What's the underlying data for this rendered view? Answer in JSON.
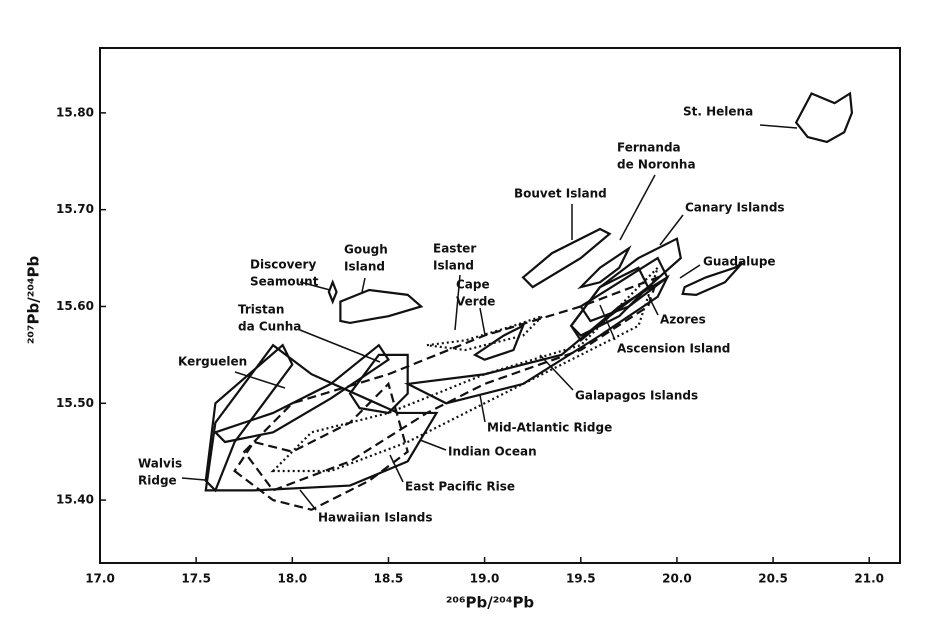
{
  "chart_data": {
    "type": "field",
    "xlabel": "²⁰⁶Pb/²⁰⁴Pb",
    "ylabel": "²⁰⁷Pb/²⁰⁴Pb",
    "xlim": [
      17.0,
      21.16
    ],
    "ylim": [
      15.335,
      15.867
    ],
    "xticks": [
      {
        "value": 17,
        "label": "17.0"
      },
      17.5,
      {
        "value": 18,
        "label": "18.0"
      },
      18.5,
      {
        "value": 19,
        "label": "19.0"
      },
      19.5,
      {
        "value": 20,
        "label": "20.0"
      },
      20.5,
      {
        "value": 21,
        "label": "21.0"
      }
    ],
    "yticks": [
      {
        "value": 15.4,
        "label": "15.40"
      },
      {
        "value": 15.5,
        "label": "15.50"
      },
      {
        "value": 15.6,
        "label": "15.60"
      },
      {
        "value": 15.7,
        "label": "15.70"
      },
      {
        "value": 15.8,
        "label": "15.80"
      }
    ],
    "color": "#111",
    "series": [
      {
        "name": [
          "St. Helena"
        ],
        "style": "solid",
        "x": [
          20.62,
          20.7,
          20.82,
          20.9,
          20.91,
          20.87,
          20.78,
          20.68
        ],
        "y": [
          15.79,
          15.82,
          15.81,
          15.82,
          15.8,
          15.78,
          15.77,
          15.775
        ]
      },
      {
        "name": [
          "Guadalupe"
        ],
        "style": "solid",
        "x": [
          20.04,
          20.15,
          20.3,
          20.34,
          20.25,
          20.1,
          20.03
        ],
        "y": [
          15.62,
          15.63,
          15.64,
          15.645,
          15.625,
          15.612,
          15.613
        ]
      },
      {
        "name": [
          "Canary Islands"
        ],
        "style": "solid",
        "x": [
          19.45,
          19.6,
          19.8,
          20.0,
          20.02,
          19.85,
          19.65,
          19.5
        ],
        "y": [
          15.58,
          15.62,
          15.65,
          15.67,
          15.65,
          15.62,
          15.59,
          15.565
        ]
      },
      {
        "name": [
          "Bouvet Island"
        ],
        "style": "solid",
        "x": [
          19.2,
          19.35,
          19.6,
          19.65,
          19.5,
          19.25
        ],
        "y": [
          15.63,
          15.655,
          15.68,
          15.675,
          15.65,
          15.62
        ]
      },
      {
        "name": [
          "Fernanda",
          "de Noronha"
        ],
        "style": "solid",
        "x": [
          19.5,
          19.6,
          19.75,
          19.7,
          19.6
        ],
        "y": [
          15.62,
          15.64,
          15.66,
          15.64,
          15.625
        ]
      },
      {
        "name": [
          "Azores"
        ],
        "style": "solid",
        "x": [
          19.5,
          19.7,
          19.9,
          19.95,
          19.75,
          19.55
        ],
        "y": [
          15.6,
          15.625,
          15.65,
          15.63,
          15.6,
          15.585
        ]
      },
      {
        "name": [
          "Ascension Island"
        ],
        "style": "solid",
        "x": [
          19.45,
          19.6,
          19.8,
          19.85,
          19.7,
          19.5
        ],
        "y": [
          15.58,
          15.62,
          15.64,
          15.62,
          15.59,
          15.57
        ]
      },
      {
        "name": [
          "Galapagos Islands"
        ],
        "style": "solid",
        "x": [
          18.6,
          19.0,
          19.4,
          19.7,
          19.95,
          19.9,
          19.6,
          19.2,
          18.8
        ],
        "y": [
          15.52,
          15.53,
          15.55,
          15.6,
          15.63,
          15.61,
          15.57,
          15.52,
          15.5
        ]
      },
      {
        "name": [
          "Mid-Atlantic Ridge"
        ],
        "style": "dashed",
        "x": [
          17.75,
          18.0,
          18.5,
          19.0,
          19.5,
          19.9,
          19.85,
          19.5,
          19.0,
          18.7,
          18.3,
          17.9
        ],
        "y": [
          15.45,
          15.5,
          15.53,
          15.57,
          15.6,
          15.63,
          15.6,
          15.555,
          15.52,
          15.49,
          15.44,
          15.41
        ]
      },
      {
        "name": [
          "Indian Ocean"
        ],
        "style": "solid",
        "x": [
          17.55,
          17.6,
          17.9,
          18.1,
          18.55,
          18.75,
          18.6,
          18.3,
          17.8
        ],
        "y": [
          15.41,
          15.48,
          15.56,
          15.53,
          15.49,
          15.49,
          15.44,
          15.415,
          15.41
        ]
      },
      {
        "name": [
          "East Pacific Rise"
        ],
        "style": "dotted",
        "x": [
          17.9,
          18.1,
          18.5,
          19.0,
          19.5,
          19.9,
          19.8,
          19.2,
          18.6,
          18.2
        ],
        "y": [
          15.43,
          15.47,
          15.49,
          15.53,
          15.56,
          15.64,
          15.58,
          15.52,
          15.46,
          15.43
        ]
      },
      {
        "name": [
          "Hawaiian Islands"
        ],
        "style": "dashed",
        "x": [
          17.7,
          17.9,
          18.1,
          18.4,
          18.6,
          18.5,
          18.3,
          18.0,
          17.8
        ],
        "y": [
          15.43,
          15.4,
          15.39,
          15.42,
          15.45,
          15.52,
          15.48,
          15.45,
          15.46
        ]
      },
      {
        "name": [
          "Gough",
          "Island"
        ],
        "style": "solid",
        "x": [
          18.25,
          18.25,
          18.4,
          18.6,
          18.67,
          18.5,
          18.3
        ],
        "y": [
          15.585,
          15.605,
          15.617,
          15.612,
          15.6,
          15.59,
          15.583
        ]
      },
      {
        "name": [
          "Discovery",
          "Seamount"
        ],
        "style": "solid",
        "x": [
          18.19,
          18.21,
          18.23,
          18.21
        ],
        "y": [
          15.615,
          15.625,
          15.615,
          15.605
        ]
      },
      {
        "name": [
          "Tristan",
          "da Cunha"
        ],
        "style": "solid",
        "x": [
          18.3,
          18.45,
          18.6,
          18.6,
          18.5,
          18.35
        ],
        "y": [
          15.51,
          15.55,
          15.55,
          15.51,
          15.49,
          15.495
        ]
      },
      {
        "name": [
          "Kerguelen"
        ],
        "style": "solid",
        "x": [
          17.6,
          17.9,
          18.2,
          18.45,
          18.5,
          18.2,
          17.9,
          17.65
        ],
        "y": [
          15.47,
          15.49,
          15.52,
          15.56,
          15.545,
          15.505,
          15.47,
          15.46
        ]
      },
      {
        "name": [
          "Walvis",
          "Ridge"
        ],
        "style": "solid",
        "x": [
          17.55,
          17.6,
          17.95,
          18.0,
          17.7,
          17.6
        ],
        "y": [
          15.42,
          15.5,
          15.56,
          15.54,
          15.46,
          15.41
        ]
      },
      {
        "name": [
          "Cape",
          "Verde"
        ],
        "style": "solid",
        "x": [
          18.95,
          19.1,
          19.2,
          19.15,
          19.0
        ],
        "y": [
          15.55,
          15.57,
          15.58,
          15.555,
          15.545
        ]
      },
      {
        "name": [
          "Easter",
          "Island"
        ],
        "style": "dotted",
        "x": [
          18.7,
          18.9,
          19.15,
          19.3,
          19.2,
          18.9
        ],
        "y": [
          15.56,
          15.565,
          15.58,
          15.59,
          15.57,
          15.555
        ]
      }
    ]
  }
}
